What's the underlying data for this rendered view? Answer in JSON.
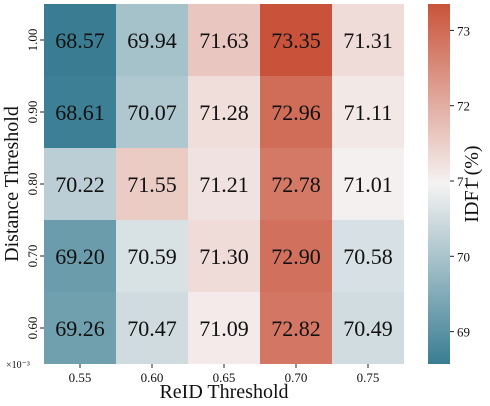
{
  "chart_data": {
    "type": "heatmap",
    "xlabel": "ReID Threshold",
    "ylabel": "Distance Threshold",
    "x_ticks": [
      "0.55",
      "0.60",
      "0.65",
      "0.70",
      "0.75"
    ],
    "y_ticks": [
      "1.00",
      "0.90",
      "0.80",
      "0.70",
      "0.60"
    ],
    "y_scale_note": "×10⁻³",
    "values": [
      [
        68.57,
        69.94,
        71.63,
        73.35,
        71.31
      ],
      [
        68.61,
        70.07,
        71.28,
        72.96,
        71.11
      ],
      [
        70.22,
        71.55,
        71.21,
        72.78,
        71.01
      ],
      [
        69.2,
        70.59,
        71.3,
        72.9,
        70.58
      ],
      [
        69.26,
        70.47,
        71.09,
        72.82,
        70.49
      ]
    ],
    "cell_labels": [
      [
        "68.57",
        "69.94",
        "71.63",
        "73.35",
        "71.31"
      ],
      [
        "68.61",
        "70.07",
        "71.28",
        "72.96",
        "71.11"
      ],
      [
        "70.22",
        "71.55",
        "71.21",
        "72.78",
        "71.01"
      ],
      [
        "69.20",
        "70.59",
        "71.30",
        "72.90",
        "70.58"
      ],
      [
        "69.26",
        "70.47",
        "71.09",
        "72.82",
        "70.49"
      ]
    ],
    "colorbar": {
      "label": "IDF1 (%)",
      "min": 68.57,
      "max": 73.35,
      "ticks": [
        "69",
        "70",
        "71",
        "72",
        "73"
      ]
    },
    "colormap": [
      "#3a7d92",
      "#f5f3f3",
      "#c9533a"
    ],
    "grid": false,
    "legend": "colorbar-right"
  }
}
